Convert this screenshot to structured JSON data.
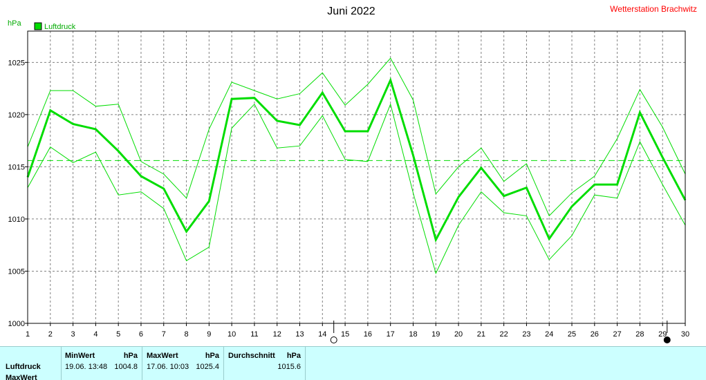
{
  "title": "Juni 2022",
  "station": "Wetterstation Brachwitz",
  "y_unit": "hPa",
  "legend_label": "Luftdruck",
  "colors": {
    "series": "#00dd00",
    "grid": "#808080",
    "stats_bg": "#ccffff",
    "station": "#ff0000"
  },
  "markers": {
    "new_moon_day": 14.5,
    "full_moon_day": 29.2
  },
  "chart_data": {
    "type": "line",
    "title": "Juni 2022",
    "ylabel": "hPa",
    "x": [
      1,
      2,
      3,
      4,
      5,
      6,
      7,
      8,
      9,
      10,
      11,
      12,
      13,
      14,
      15,
      16,
      17,
      18,
      19,
      20,
      21,
      22,
      23,
      24,
      25,
      26,
      27,
      28,
      29,
      30
    ],
    "xlim": [
      1,
      30
    ],
    "ylim": [
      1000,
      1028
    ],
    "yticks": [
      1000,
      1005,
      1010,
      1015,
      1020,
      1025
    ],
    "grid": true,
    "legend_position": "top-left",
    "series": [
      {
        "name": "Luftdruck",
        "values": [
          1014.0,
          1020.4,
          1019.1,
          1018.6,
          1016.5,
          1014.1,
          1012.9,
          1008.8,
          1011.7,
          1021.5,
          1021.6,
          1019.4,
          1019.0,
          1022.1,
          1018.4,
          1018.4,
          1023.3,
          1016.1,
          1008.0,
          1012.1,
          1014.9,
          1012.2,
          1013.0,
          1008.1,
          1011.2,
          1013.3,
          1013.3,
          1020.2,
          1015.9,
          1011.8
        ]
      },
      {
        "values": [
          1016.9,
          1022.3,
          1022.3,
          1020.8,
          1021.0,
          1015.5,
          1014.3,
          1012.0,
          1018.6,
          1023.1,
          1022.3,
          1021.5,
          1022.0,
          1024.0,
          1020.9,
          1022.9,
          1025.4,
          1021.4,
          1012.4,
          1015.0,
          1016.8,
          1013.6,
          1015.3,
          1010.3,
          1012.5,
          1014.1,
          1017.7,
          1022.4,
          1018.8,
          1014.3
        ]
      },
      {
        "values": [
          1013.0,
          1016.9,
          1015.4,
          1016.4,
          1012.3,
          1012.6,
          1011.0,
          1006.0,
          1007.3,
          1018.7,
          1021.0,
          1016.8,
          1017.0,
          1019.9,
          1015.7,
          1015.5,
          1021.0,
          1012.5,
          1004.8,
          1009.4,
          1012.6,
          1010.6,
          1010.3,
          1006.1,
          1008.4,
          1012.3,
          1012.0,
          1017.4,
          1013.3,
          1009.4
        ]
      }
    ],
    "average_line": 1015.6,
    "xtick_labels": [
      "1",
      "2",
      "3",
      "4",
      "5",
      "6",
      "7",
      "8",
      "9",
      "10",
      "11",
      "12",
      "13",
      "14",
      "15",
      "16",
      "17",
      "18",
      "19",
      "20",
      "21",
      "22",
      "23",
      "24",
      "25",
      "26",
      "27",
      "28",
      "29",
      "30"
    ]
  },
  "stats": {
    "row1_label": "Luftdruck",
    "row2_label": "MaxWert",
    "min": {
      "header": "MinWert",
      "unit": "hPa",
      "when": "19.06.  13:48",
      "value": "1004.8"
    },
    "max": {
      "header": "MaxWert",
      "unit": "hPa",
      "when": "17.06.  10:03",
      "value": "1025.4"
    },
    "avg": {
      "header": "Durchschnitt",
      "unit": "hPa",
      "value": "1015.6"
    }
  }
}
